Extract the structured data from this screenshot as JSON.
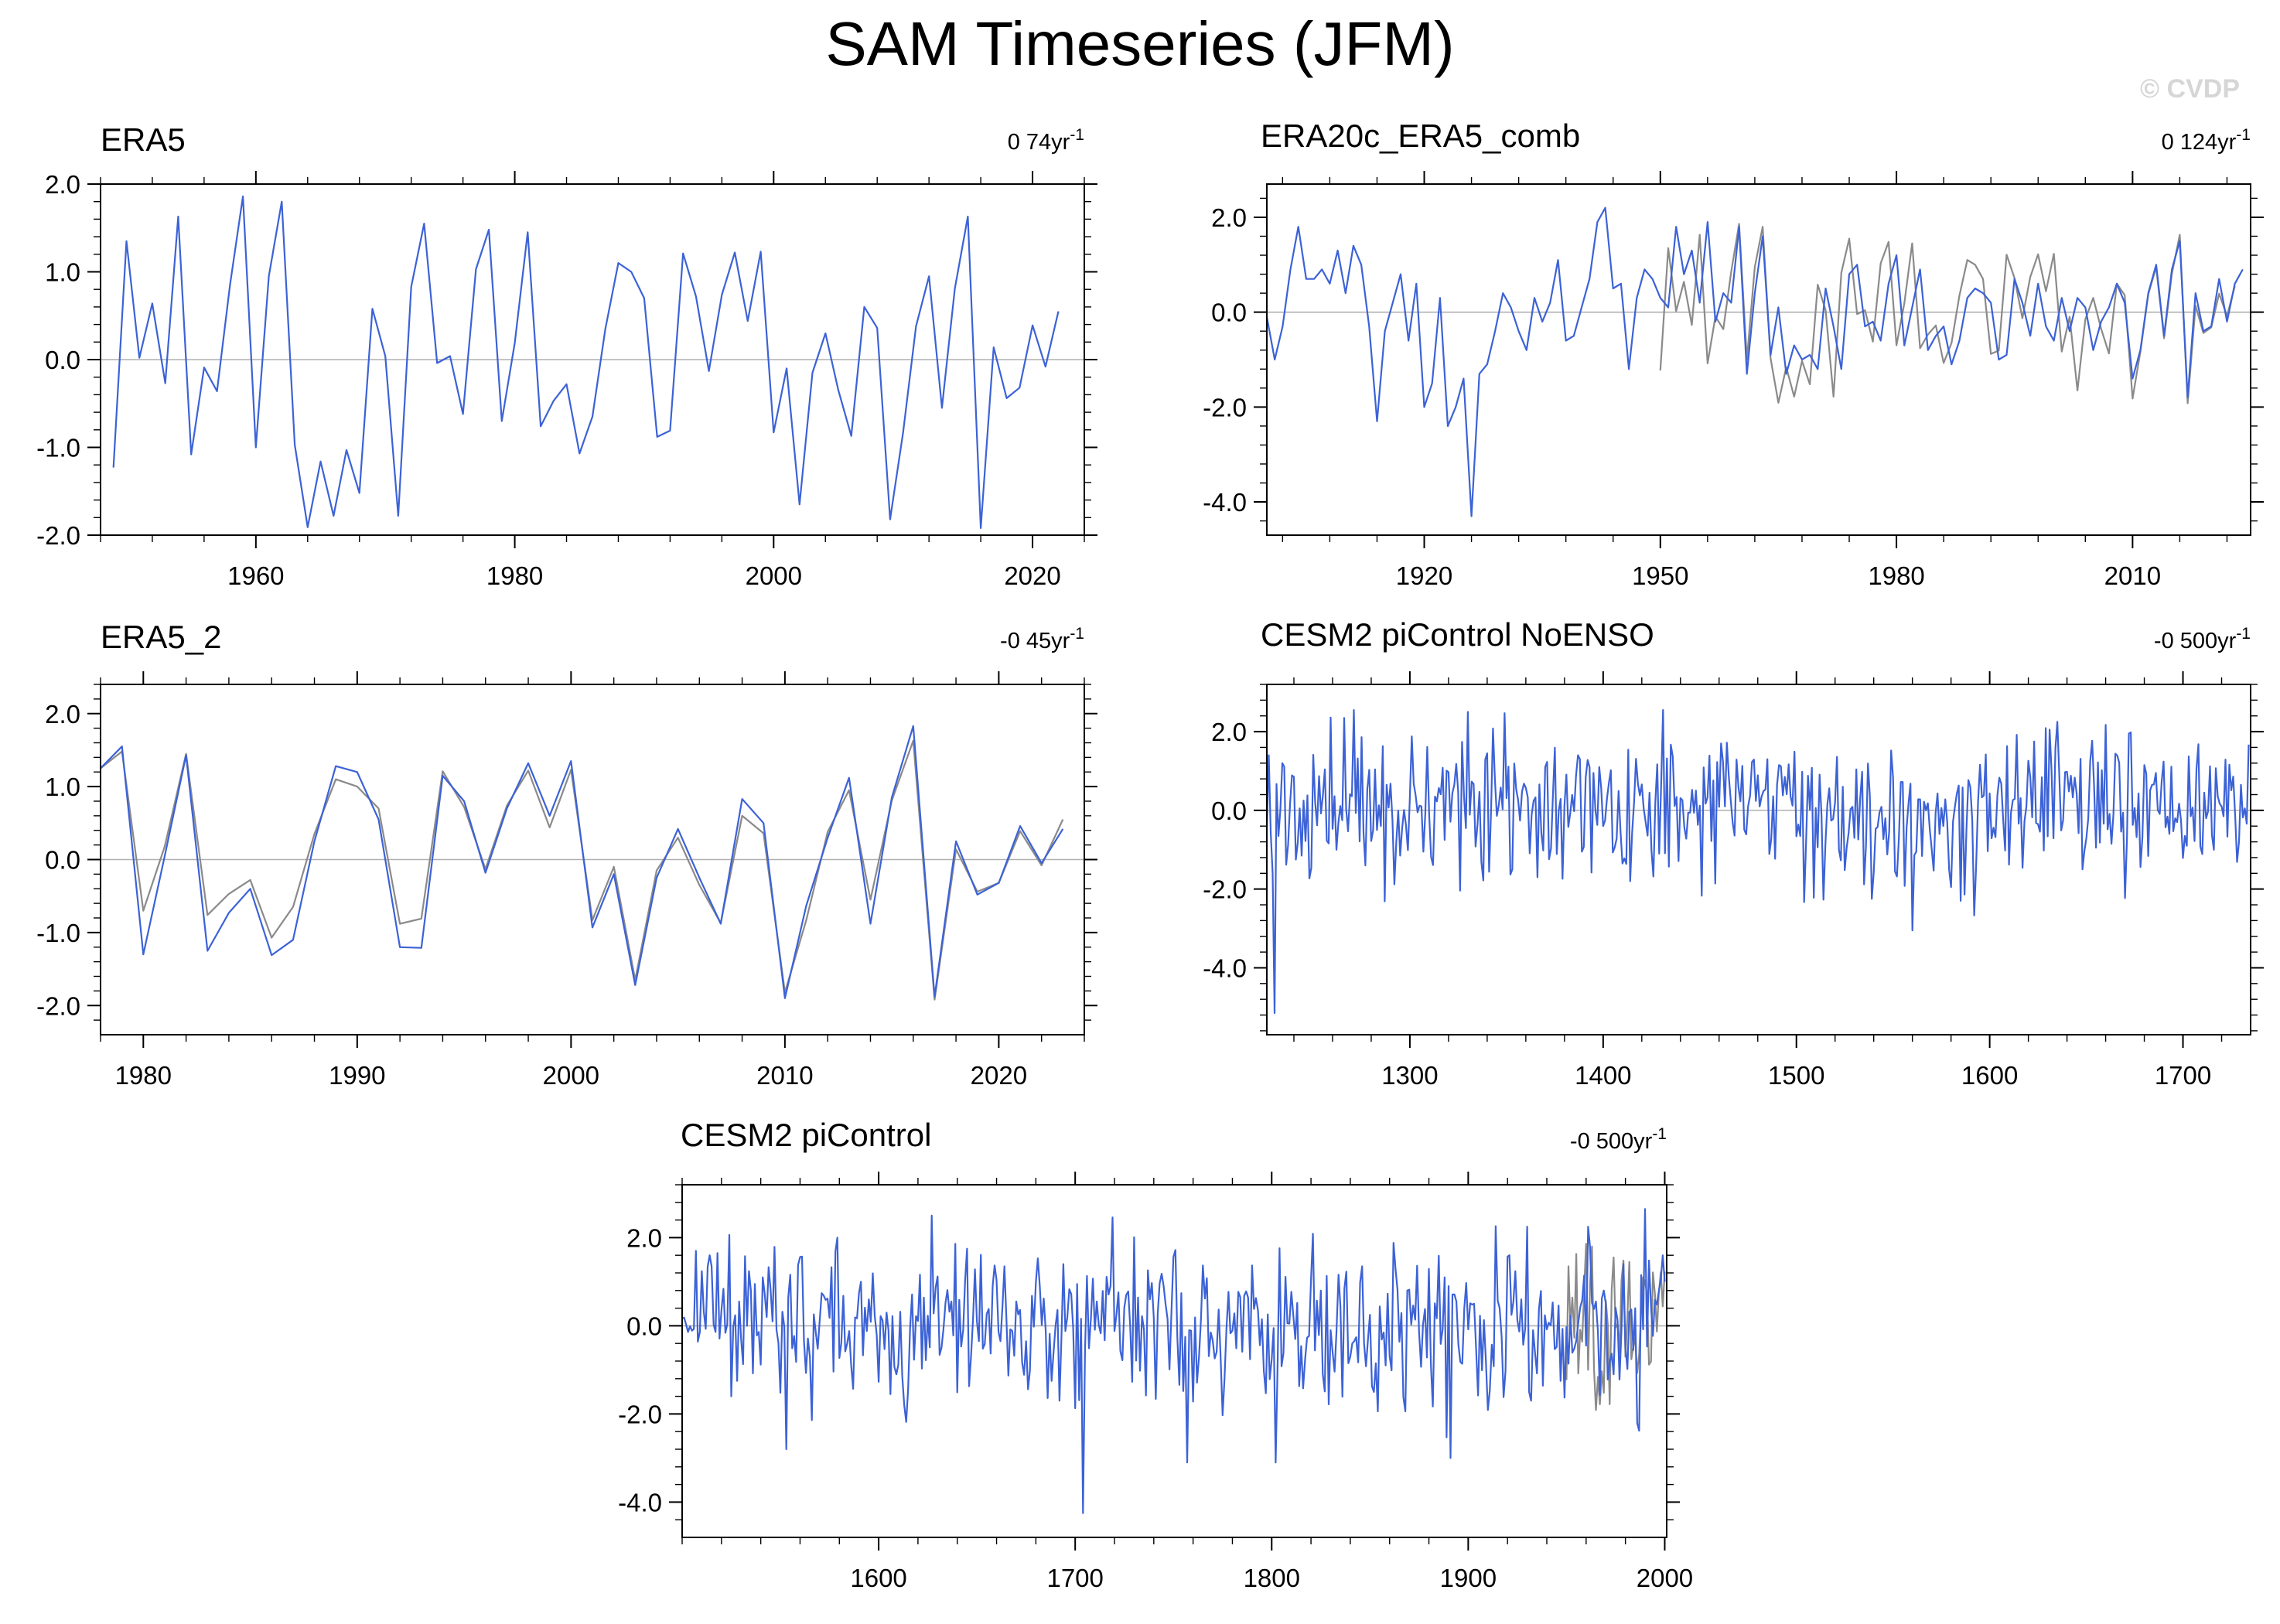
{
  "figure": {
    "title": "SAM Timeseries (JFM)",
    "watermark": "© CVDP"
  },
  "colors": {
    "primary": "#3c62d6",
    "reference": "#8a8a8a",
    "zero_line": "#b0b0b0",
    "frame": "#000000"
  },
  "chart_data": [
    {
      "type": "line",
      "title": "ERA5",
      "trend_label": "0 74yr",
      "trend_exp": "-1",
      "xlim": [
        1948,
        2024
      ],
      "ylim": [
        -2.0,
        2.0
      ],
      "xticks": [
        1960,
        1980,
        2000,
        2020
      ],
      "yticks": [
        2.0,
        1.0,
        0.0,
        -1.0,
        -2.0
      ],
      "ytick_labels": [
        "2.0",
        "1.0",
        "0.0",
        "-1.0",
        "-2.0"
      ],
      "series": [
        {
          "role": "primary",
          "x_start": 1949,
          "values": [
            -1.23,
            1.35,
            0.02,
            0.64,
            -0.27,
            1.63,
            -1.08,
            -0.09,
            -0.36,
            0.85,
            1.86,
            -1.0,
            0.95,
            1.8,
            -0.97,
            -1.91,
            -1.16,
            -1.78,
            -1.03,
            -1.52,
            0.58,
            0.04,
            -1.78,
            0.83,
            1.55,
            -0.04,
            0.04,
            -0.62,
            1.03,
            1.48,
            -0.7,
            0.19,
            1.45,
            -0.76,
            -0.47,
            -0.28,
            -1.07,
            -0.65,
            0.35,
            1.1,
            1.0,
            0.7,
            -0.88,
            -0.81,
            1.21,
            0.72,
            -0.13,
            0.74,
            1.22,
            0.44,
            1.23,
            -0.83,
            -0.1,
            -1.65,
            -0.15,
            0.3,
            -0.35,
            -0.87,
            0.6,
            0.36,
            -1.82,
            -0.83,
            0.38,
            0.95,
            -0.55,
            0.81,
            1.63,
            -1.92,
            0.14,
            -0.44,
            -0.32,
            0.39,
            -0.08,
            0.55
          ]
        }
      ]
    },
    {
      "type": "line",
      "title": "ERA20c_ERA5_comb",
      "trend_label": "0 124yr",
      "trend_exp": "-1",
      "xlim": [
        1900,
        2025
      ],
      "ylim": [
        -4.7,
        2.7
      ],
      "xticks": [
        1920,
        1950,
        1980,
        2010
      ],
      "yticks": [
        2.0,
        0.0,
        -2.0,
        -4.0
      ],
      "ytick_labels": [
        "2.0",
        "0.0",
        "-2.0",
        "-4.0"
      ],
      "series": [
        {
          "role": "primary",
          "x_start": 1900,
          "values": [
            -0.1,
            -1.0,
            -0.3,
            0.9,
            1.8,
            0.7,
            0.7,
            0.9,
            0.6,
            1.3,
            0.4,
            1.4,
            1.0,
            -0.3,
            -2.3,
            -0.4,
            0.2,
            0.8,
            -0.6,
            0.6,
            -2.0,
            -1.5,
            0.3,
            -2.4,
            -2.0,
            -1.4,
            -4.3,
            -1.3,
            -1.1,
            -0.4,
            0.4,
            0.1,
            -0.4,
            -0.8,
            0.3,
            -0.2,
            0.2,
            1.1,
            -0.6,
            -0.5,
            0.1,
            0.7,
            1.9,
            2.2,
            0.5,
            0.6,
            -1.2,
            0.3,
            0.9,
            0.7,
            0.3,
            0.1,
            1.8,
            0.8,
            1.3,
            0.2,
            1.9,
            -0.2,
            0.4,
            0.2,
            1.8,
            -1.3,
            0.4,
            1.6,
            -0.9,
            0.1,
            -1.3,
            -0.7,
            -1.0,
            -0.9,
            -1.2,
            0.5,
            -0.3,
            -1.2,
            0.8,
            1.0,
            -0.3,
            -0.2,
            -0.6,
            0.6,
            1.2,
            -0.7,
            0.1,
            0.9,
            -0.8,
            -0.5,
            -0.3,
            -1.1,
            -0.6,
            0.3,
            0.5,
            0.4,
            0.2,
            -1.0,
            -0.9,
            0.7,
            0.2,
            -0.5,
            0.6,
            -0.3,
            -0.6,
            0.3,
            -0.4,
            0.3,
            0.1,
            -0.8,
            -0.2,
            0.1,
            0.6,
            0.2,
            -1.4,
            -0.8,
            0.4,
            1.0,
            -0.5,
            0.9,
            1.5,
            -1.8,
            0.4,
            -0.4,
            -0.3,
            0.7,
            -0.2,
            0.6,
            0.9
          ]
        },
        {
          "role": "reference",
          "x_start": 1950,
          "values": [
            -1.23,
            1.35,
            0.02,
            0.64,
            -0.27,
            1.63,
            -1.08,
            -0.09,
            -0.36,
            0.85,
            1.86,
            -1.0,
            0.95,
            1.8,
            -0.97,
            -1.91,
            -1.16,
            -1.78,
            -1.03,
            -1.52,
            0.58,
            0.04,
            -1.78,
            0.83,
            1.55,
            -0.04,
            0.04,
            -0.62,
            1.03,
            1.48,
            -0.7,
            0.19,
            1.45,
            -0.76,
            -0.47,
            -0.28,
            -1.07,
            -0.65,
            0.35,
            1.1,
            1.0,
            0.7,
            -0.88,
            -0.81,
            1.21,
            0.72,
            -0.13,
            0.74,
            1.22,
            0.44,
            1.23,
            -0.83,
            -0.1,
            -1.65,
            -0.15,
            0.3,
            -0.35,
            -0.87,
            0.6,
            0.36,
            -1.82,
            -0.83,
            0.38,
            0.95,
            -0.55,
            0.81,
            1.63,
            -1.92,
            0.14,
            -0.44,
            -0.32,
            0.39,
            -0.08,
            0.55
          ]
        }
      ]
    },
    {
      "type": "line",
      "title": "ERA5_2",
      "trend_label": "-0 45yr",
      "trend_exp": "-1",
      "xlim": [
        1978,
        2024
      ],
      "ylim": [
        -2.4,
        2.4
      ],
      "xticks": [
        1980,
        1990,
        2000,
        2010,
        2020
      ],
      "yticks": [
        2.0,
        1.0,
        0.0,
        -1.0,
        -2.0
      ],
      "ytick_labels": [
        "2.0",
        "1.0",
        "0.0",
        "-1.0",
        "-2.0"
      ],
      "series": [
        {
          "role": "reference",
          "x_start": 1978,
          "values": [
            1.25,
            1.48,
            -0.7,
            0.18,
            1.45,
            -0.76,
            -0.47,
            -0.28,
            -1.07,
            -0.65,
            0.35,
            1.1,
            1.0,
            0.7,
            -0.88,
            -0.81,
            1.21,
            0.72,
            -0.13,
            0.74,
            1.22,
            0.44,
            1.23,
            -0.83,
            -0.1,
            -1.65,
            -0.15,
            0.3,
            -0.35,
            -0.87,
            0.6,
            0.36,
            -1.82,
            -0.83,
            0.38,
            0.95,
            -0.55,
            0.81,
            1.63,
            -1.92,
            0.14,
            -0.44,
            -0.32,
            0.39,
            -0.08,
            0.55
          ]
        },
        {
          "role": "primary",
          "x_start": 1978,
          "values": [
            1.25,
            1.55,
            -1.3,
            0.05,
            1.43,
            -1.25,
            -0.73,
            -0.4,
            -1.31,
            -1.1,
            0.25,
            1.28,
            1.2,
            0.55,
            -1.2,
            -1.21,
            1.15,
            0.8,
            -0.18,
            0.7,
            1.32,
            0.6,
            1.35,
            -0.93,
            -0.2,
            -1.72,
            -0.25,
            0.42,
            -0.25,
            -0.88,
            0.83,
            0.5,
            -1.9,
            -0.63,
            0.3,
            1.12,
            -0.88,
            0.85,
            1.83,
            -1.88,
            0.25,
            -0.48,
            -0.32,
            0.46,
            -0.05,
            0.42
          ]
        }
      ]
    },
    {
      "type": "line",
      "title": "CESM2 piControl NoENSO",
      "trend_label": "-0 500yr",
      "trend_exp": "-1",
      "xlim": [
        1226,
        1735
      ],
      "ylim": [
        -5.7,
        3.2
      ],
      "xticks": [
        1300,
        1400,
        1500,
        1600,
        1700
      ],
      "yticks": [
        2.0,
        0.0,
        -2.0,
        -4.0
      ],
      "ytick_labels": [
        "2.0",
        "0.0",
        "-2.0",
        "-4.0"
      ],
      "series": [
        {
          "role": "primary",
          "x_start": 1226,
          "n": 509,
          "values": [],
          "description_note": ""
        }
      ]
    },
    {
      "type": "line",
      "title": "CESM2 piControl",
      "trend_label": "-0 500yr",
      "trend_exp": "-1",
      "xlim": [
        1500,
        2001
      ],
      "ylim": [
        -4.8,
        3.2
      ],
      "xticks": [
        1600,
        1700,
        1800,
        1900,
        2000
      ],
      "yticks": [
        2.0,
        0.0,
        -2.0,
        -4.0
      ],
      "ytick_labels": [
        "2.0",
        "0.0",
        "-2.0",
        "-4.0"
      ],
      "series": [
        {
          "role": "primary",
          "x_start": 1500,
          "n": 501,
          "values": []
        },
        {
          "role": "reference",
          "x_start": 1950,
          "values": [
            -1.23,
            1.35,
            0.02,
            0.64,
            -0.27,
            1.63,
            -1.08,
            -0.09,
            -0.36,
            0.85,
            1.86,
            -1.0,
            0.95,
            1.8,
            -0.97,
            -1.91,
            -1.16,
            -1.78,
            -1.03,
            -1.52,
            0.58,
            0.04,
            -1.78,
            0.83,
            1.55,
            -0.04,
            0.04,
            -0.62,
            1.03,
            1.48,
            -0.7,
            0.19,
            1.45,
            -0.76,
            -0.47,
            -0.28,
            -1.07,
            -0.65,
            0.35,
            1.1,
            1.0,
            0.7,
            -0.88,
            -0.81,
            1.21,
            0.72,
            -0.13,
            0.74,
            1.22,
            0.44,
            1.23
          ]
        }
      ]
    }
  ]
}
